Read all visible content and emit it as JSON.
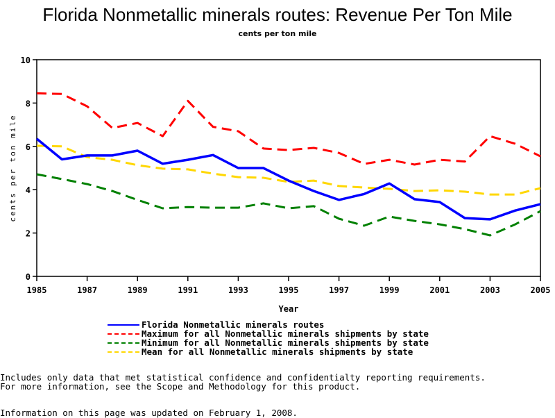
{
  "chart_data": {
    "type": "line",
    "title": "Florida Nonmetallic minerals routes: Revenue Per Ton Mile",
    "subtitle": "cents per ton mile",
    "xlabel": "Year",
    "ylabel": "cents per ton mile",
    "x": [
      1985,
      1986,
      1987,
      1988,
      1989,
      1990,
      1991,
      1992,
      1993,
      1994,
      1995,
      1996,
      1997,
      1998,
      1999,
      2000,
      2001,
      2002,
      2003,
      2004,
      2005
    ],
    "xlim": [
      1985,
      2005
    ],
    "ylim": [
      0,
      10
    ],
    "x_ticks": [
      "1985",
      "1987",
      "1989",
      "1991",
      "1993",
      "1995",
      "1997",
      "1999",
      "2001",
      "2003",
      "2005"
    ],
    "y_ticks": [
      "0",
      "2",
      "4",
      "6",
      "8",
      "10"
    ],
    "grid": false,
    "legend_position": "bottom",
    "series": [
      {
        "name": "Florida Nonmetallic minerals routes",
        "color": "#0000ff",
        "style": "solid",
        "values": [
          6.35,
          5.4,
          5.58,
          5.58,
          5.8,
          5.2,
          5.38,
          5.6,
          5.0,
          5.0,
          4.42,
          3.94,
          3.53,
          3.8,
          4.29,
          3.56,
          3.43,
          2.69,
          2.63,
          3.04,
          3.33
        ]
      },
      {
        "name": "Maximum for all Nonmetallic minerals shipments by state",
        "color": "#ff0000",
        "style": "dashed",
        "values": [
          8.45,
          8.42,
          7.85,
          6.85,
          7.08,
          6.47,
          8.1,
          6.9,
          6.7,
          5.9,
          5.83,
          5.93,
          5.7,
          5.19,
          5.38,
          5.16,
          5.38,
          5.3,
          6.47,
          6.12,
          5.54
        ]
      },
      {
        "name": "Minimum for all Nonmetallic minerals shipments by state",
        "color": "#008000",
        "style": "dashed",
        "values": [
          4.71,
          4.49,
          4.26,
          3.94,
          3.53,
          3.14,
          3.2,
          3.17,
          3.17,
          3.37,
          3.14,
          3.24,
          2.66,
          2.34,
          2.76,
          2.56,
          2.4,
          2.18,
          1.89,
          2.4,
          3.01
        ]
      },
      {
        "name": "Mean for all Nonmetallic minerals shipments by state",
        "color": "#ffd700",
        "style": "dashed",
        "values": [
          6.03,
          6.0,
          5.5,
          5.38,
          5.13,
          4.97,
          4.94,
          4.74,
          4.58,
          4.55,
          4.36,
          4.42,
          4.17,
          4.1,
          4.04,
          3.94,
          3.97,
          3.91,
          3.78,
          3.78,
          4.07
        ]
      }
    ]
  },
  "notes": {
    "line1": "Includes only data that met statistical confidence and confidentialty reporting requirements.",
    "line2": "For more information, see the Scope and Methodology for this product.",
    "updated": "Information on this page was updated on February 1, 2008."
  }
}
